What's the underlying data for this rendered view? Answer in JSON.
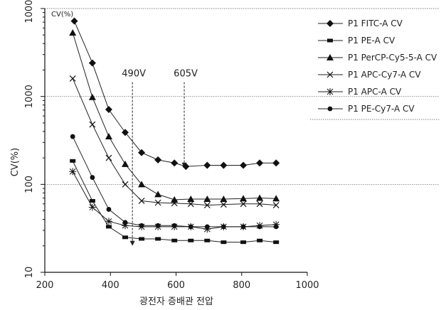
{
  "chart_data": {
    "type": "line",
    "title": "",
    "xlabel": "광전자 증배관 전압",
    "ylabel": "CV(%)",
    "y_unit_label": "CV(%)",
    "xlim": [
      200,
      1000
    ],
    "ylim": [
      10,
      10000
    ],
    "y_scale": "log",
    "x_ticks": [
      200,
      400,
      600,
      800,
      1000
    ],
    "y_ticks": [
      10,
      100,
      1000,
      10000
    ],
    "y_tick_labels": [
      "10",
      "100",
      "1000",
      "10000"
    ],
    "grid": "horizontal dotted at 100, 1000, 10000",
    "legend_position": "right",
    "annotations": [
      {
        "text": "490V",
        "x": 467,
        "y_from": 1000,
        "y_to": 20
      },
      {
        "text": "605V",
        "x": 625,
        "y_from": 1000,
        "y_to": 155
      }
    ],
    "series": [
      {
        "name": "P1 FITC-A CV",
        "marker": "diamond",
        "x": [
          290,
          345,
          395,
          445,
          495,
          545,
          595,
          630,
          695,
          745,
          805,
          855,
          905
        ],
        "y": [
          7200,
          2400,
          710,
          390,
          230,
          190,
          175,
          160,
          165,
          165,
          165,
          175,
          175
        ]
      },
      {
        "name": "P1 PE-A CV",
        "marker": "square",
        "x": [
          285,
          345,
          395,
          445,
          495,
          545,
          595,
          645,
          695,
          745,
          805,
          855,
          905
        ],
        "y": [
          185,
          65,
          33,
          25,
          24,
          24,
          23,
          23,
          23,
          22,
          22,
          23,
          22
        ]
      },
      {
        "name": "P1 PerCP-Cy5-5-A CV",
        "marker": "triangle",
        "x": [
          285,
          345,
          395,
          445,
          495,
          545,
          595,
          645,
          695,
          745,
          805,
          855,
          905
        ],
        "y": [
          5300,
          980,
          350,
          170,
          100,
          77,
          67,
          68,
          68,
          68,
          69,
          70,
          69
        ]
      },
      {
        "name": "P1 APC-Cy7-A CV",
        "marker": "x",
        "x": [
          285,
          345,
          395,
          445,
          495,
          545,
          595,
          645,
          695,
          745,
          805,
          855,
          905
        ],
        "y": [
          1600,
          480,
          200,
          100,
          65,
          62,
          61,
          60,
          58,
          59,
          60,
          60,
          58
        ]
      },
      {
        "name": "P1 APC-A CV",
        "marker": "asterisk",
        "x": [
          285,
          345,
          395,
          445,
          495,
          545,
          595,
          645,
          695,
          745,
          805,
          855,
          905
        ],
        "y": [
          140,
          55,
          38,
          34,
          33,
          33,
          33,
          33,
          31,
          33,
          33,
          34,
          35
        ]
      },
      {
        "name": "P1 PE-Cy7-A CV",
        "marker": "circle",
        "x": [
          285,
          345,
          395,
          445,
          495,
          545,
          595,
          645,
          695,
          745,
          805,
          855,
          905
        ],
        "y": [
          350,
          120,
          52,
          37,
          34,
          34,
          34,
          33,
          33,
          33,
          33,
          33,
          33
        ]
      }
    ]
  }
}
